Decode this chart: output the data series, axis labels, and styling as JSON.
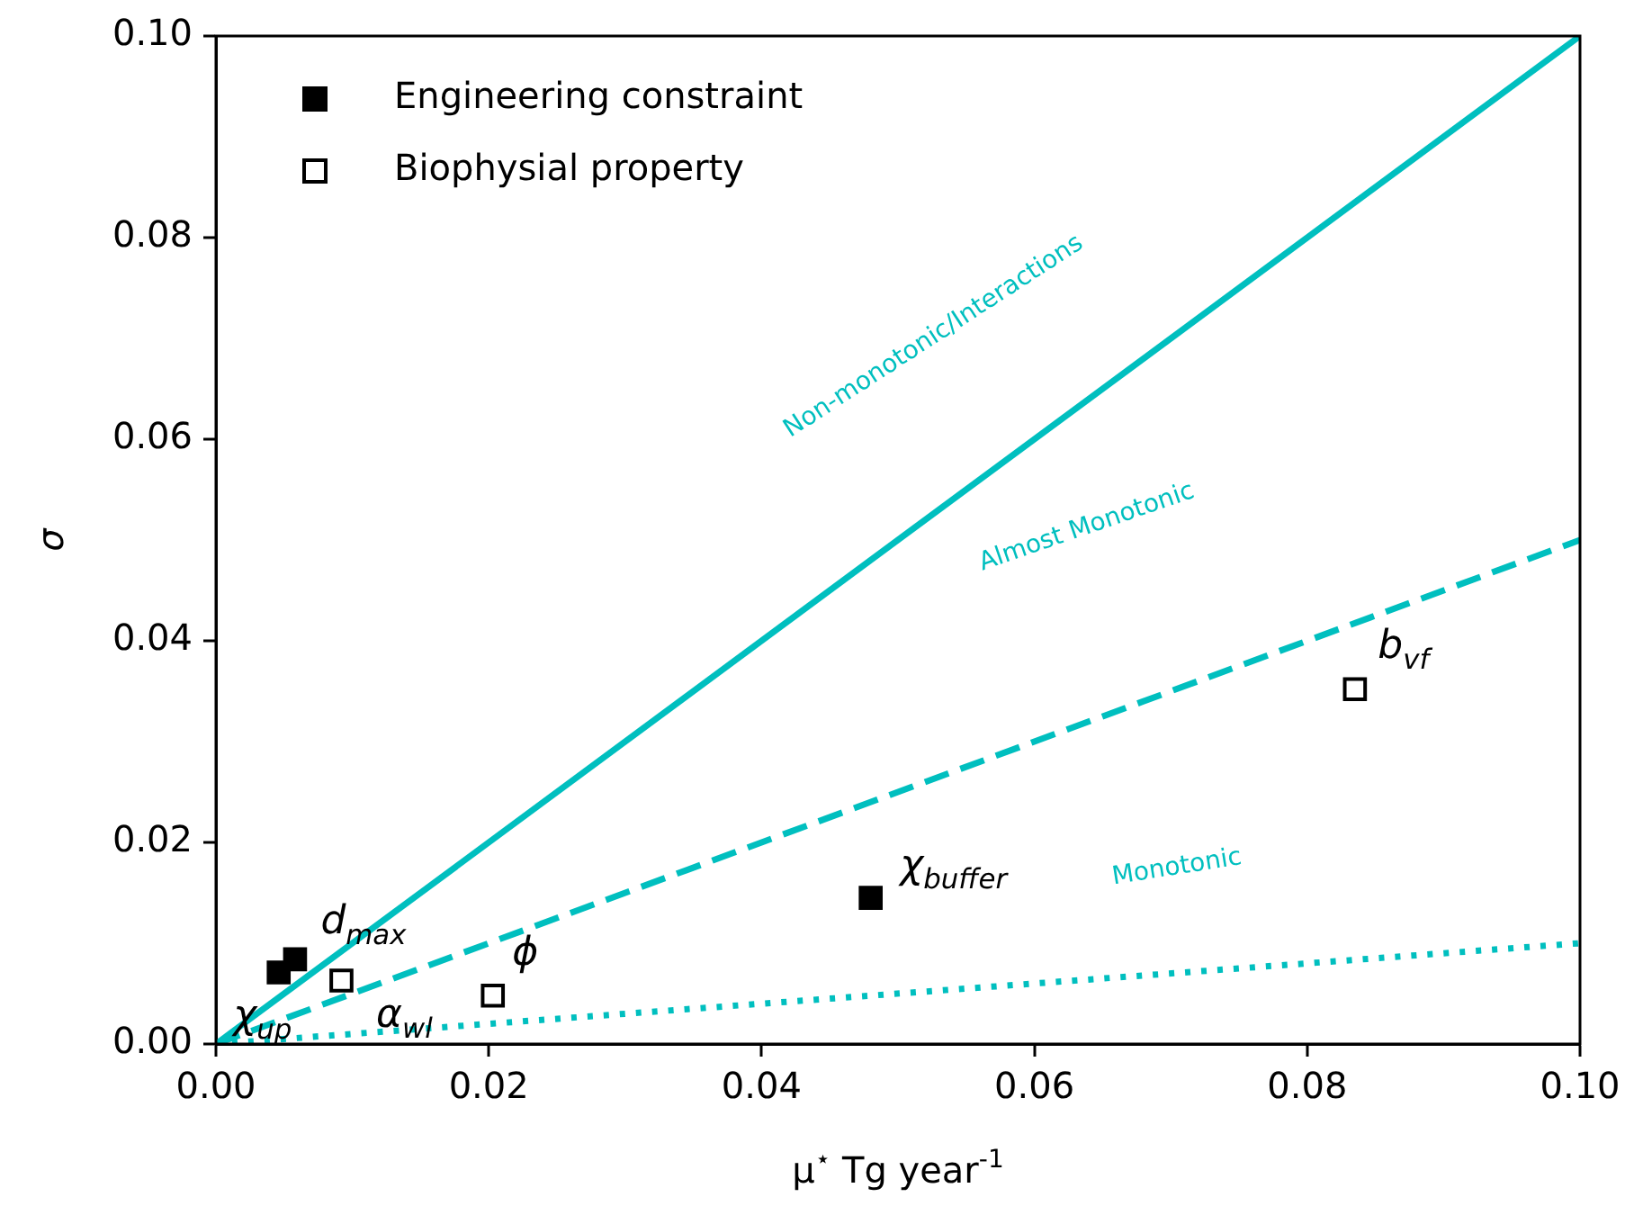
{
  "chart_data": {
    "type": "scatter",
    "xlabel": "μ$^{⋆}$ Tg year$^{-1}$",
    "ylabel": "σ",
    "xlim": [
      0,
      0.1
    ],
    "ylim": [
      0,
      0.1
    ],
    "xticks": [
      {
        "value": 0,
        "label": "0.00"
      },
      {
        "value": 0.02,
        "label": "0.02"
      },
      {
        "value": 0.04,
        "label": "0.04"
      },
      {
        "value": 0.06,
        "label": "0.06"
      },
      {
        "value": 0.08,
        "label": "0.08"
      },
      {
        "value": 0.1,
        "label": "0.10"
      }
    ],
    "yticks": [
      {
        "value": 0,
        "label": "0.00"
      },
      {
        "value": 0.02,
        "label": "0.02"
      },
      {
        "value": 0.04,
        "label": "0.04"
      },
      {
        "value": 0.06,
        "label": "0.06"
      },
      {
        "value": 0.08,
        "label": "0.08"
      },
      {
        "value": 0.1,
        "label": "0.10"
      }
    ],
    "grid": false,
    "legend": "top left",
    "series": [
      {
        "name": "Engineering constraint",
        "color": "#000000",
        "marker": "square",
        "x": [
          0.0046,
          0.0058,
          0.048
        ],
        "values": [
          0.0071,
          0.0084,
          0.0145
        ]
      },
      {
        "name": "Biophysial property",
        "color": "#000000",
        "marker": "square",
        "x": [
          0.0092,
          0.0203,
          0.0835
        ],
        "values": [
          0.0063,
          0.0048,
          0.0352
        ]
      },
      {
        "type": "line",
        "color": "#00bfbf",
        "line_style": "solid",
        "x": [
          0,
          0.1
        ],
        "values": [
          0,
          0.1
        ]
      },
      {
        "type": "line",
        "color": "#00bfbf",
        "line_style": "dashed",
        "x": [
          0,
          0.1
        ],
        "values": [
          0,
          0.05
        ]
      },
      {
        "type": "line",
        "color": "#00bfbf",
        "line_style": "dotted",
        "x": [
          0,
          0.1
        ],
        "values": [
          0,
          0.01
        ]
      }
    ],
    "annotations": [
      {
        "text": "χ$_{up}$",
        "x": 0.0046,
        "y": 0.0071
      },
      {
        "text": "d$_{max}$",
        "x": 0.0058,
        "y": 0.0084
      },
      {
        "text": "χ$_{buffer}$",
        "x": 0.048,
        "y": 0.0145
      },
      {
        "text": "α$_{wl}$",
        "x": 0.0092,
        "y": 0.0063
      },
      {
        "text": "ϕ",
        "x": 0.0203,
        "y": 0.0048
      },
      {
        "text": "b$_{vf}$",
        "x": 0.0835,
        "y": 0.0352
      },
      "Non-monotonic/Interactions",
      "Almost Monotonic",
      "Monotonic"
    ]
  }
}
